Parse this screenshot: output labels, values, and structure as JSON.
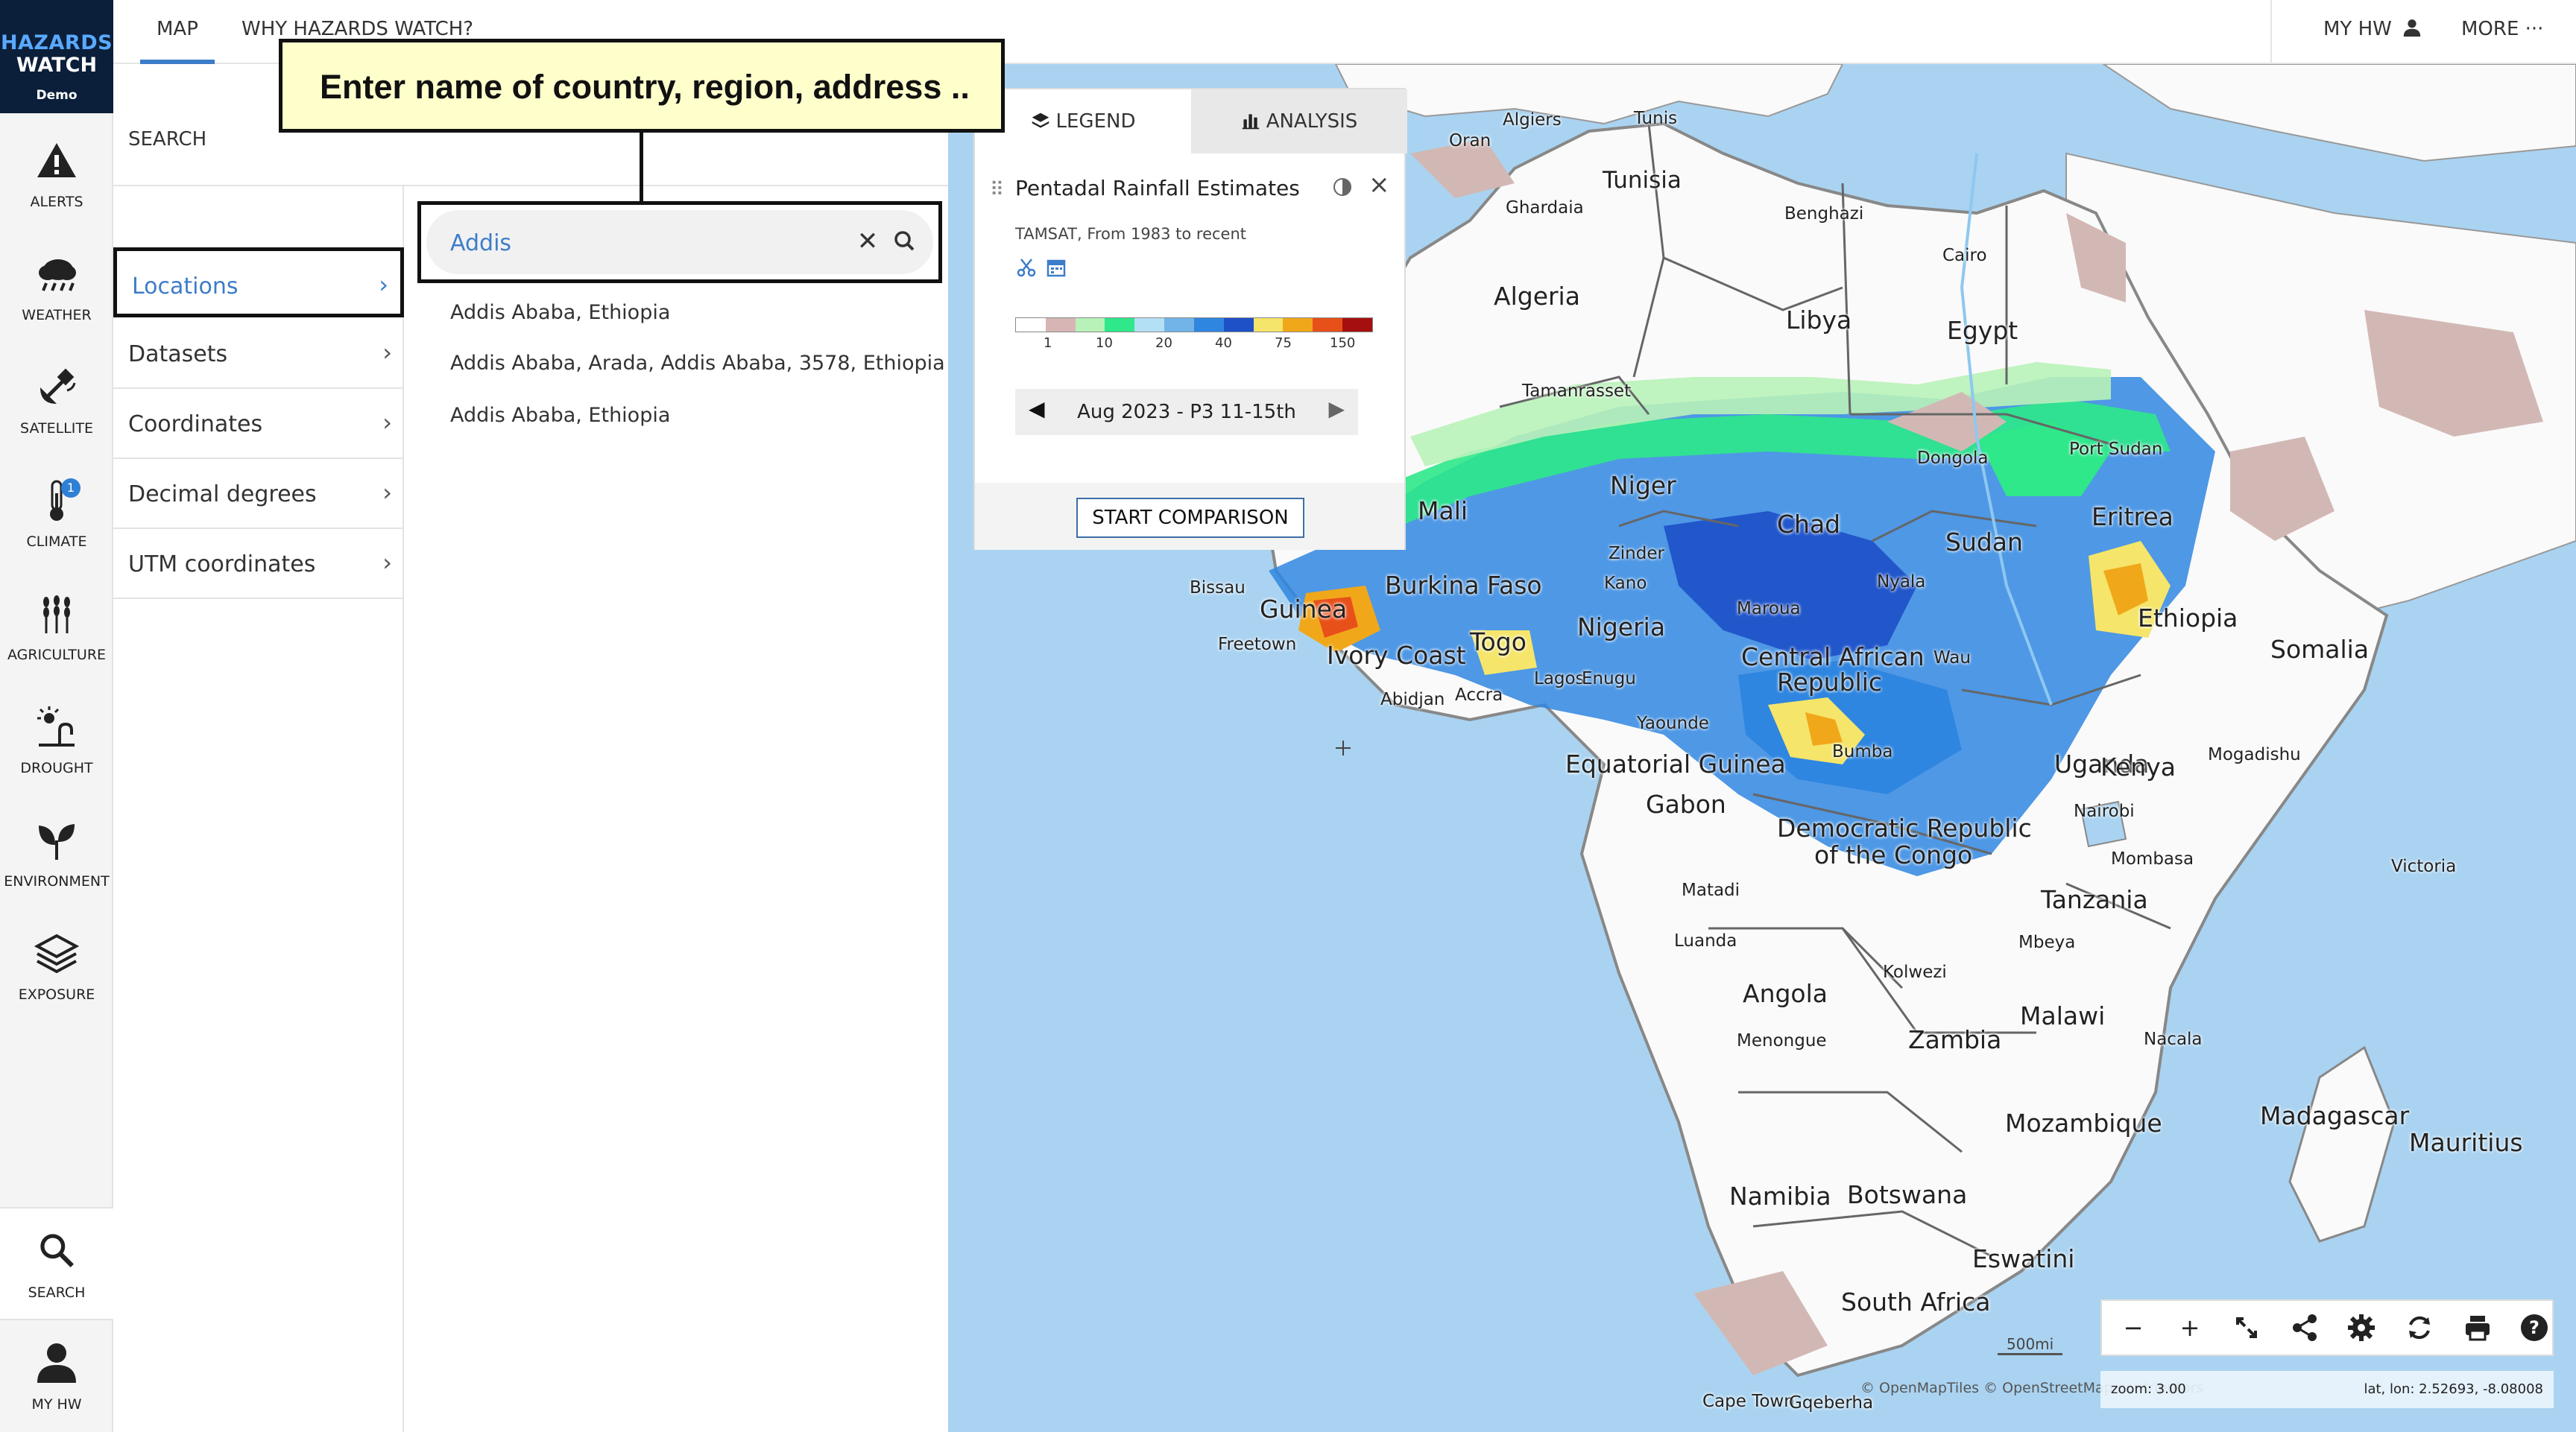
{
  "app": {
    "logo_line1": "HAZARDS",
    "logo_line2": "WATCH",
    "logo_line3": "Demo"
  },
  "topnav": {
    "tabs": [
      {
        "label": "MAP",
        "active": true
      },
      {
        "label": "WHY HAZARDS WATCH?",
        "active": false
      }
    ],
    "my_hw": "MY HW",
    "more": "MORE ···"
  },
  "rail": {
    "items": [
      {
        "label": "ALERTS",
        "icon": "alert-icon"
      },
      {
        "label": "WEATHER",
        "icon": "weather-icon"
      },
      {
        "label": "SATELLITE",
        "icon": "satellite-icon"
      },
      {
        "label": "CLIMATE",
        "icon": "thermometer-icon",
        "badge": "1"
      },
      {
        "label": "AGRICULTURE",
        "icon": "wheat-icon"
      },
      {
        "label": "DROUGHT",
        "icon": "drought-icon"
      },
      {
        "label": "ENVIRONMENT",
        "icon": "leaf-icon"
      },
      {
        "label": "EXPOSURE",
        "icon": "layers-icon"
      }
    ],
    "search_label": "SEARCH",
    "myhw_label": "MY HW"
  },
  "search": {
    "title": "SEARCH",
    "categories": [
      {
        "label": "Locations",
        "active": true
      },
      {
        "label": "Datasets"
      },
      {
        "label": "Coordinates"
      },
      {
        "label": "Decimal degrees"
      },
      {
        "label": "UTM coordinates"
      }
    ],
    "query": "Addis",
    "placeholder": "Enter name of country, region, address ..",
    "results": [
      "Addis Ababa, Ethiopia",
      "Addis Ababa, Arada, Addis Ababa, 3578, Ethiopia",
      "Addis Ababa, Ethiopia"
    ]
  },
  "callout": {
    "text": "Enter name of country, region, address .."
  },
  "legend": {
    "tab_legend": "LEGEND",
    "tab_analysis": "ANALYSIS",
    "layer_title": "Pentadal Rainfall Estimates",
    "layer_subtitle": "TAMSAT, From 1983 to recent",
    "colorbar": [
      "#ffffff",
      "#d7b5b5",
      "#b8f2b8",
      "#2ee88a",
      "#b4e0f5",
      "#72b4e8",
      "#2f86e0",
      "#1e50c8",
      "#f5e56a",
      "#f0a81a",
      "#e8501a",
      "#a50f0f"
    ],
    "colorbar_labels": [
      "1",
      "10",
      "20",
      "40",
      "75",
      "150"
    ],
    "date": "Aug 2023 - P3 11-15th",
    "compare_button": "START COMPARISON"
  },
  "map": {
    "labels": {
      "countries": [
        "Algeria",
        "Libya",
        "Egypt",
        "Tunisia",
        "Mali",
        "Niger",
        "Chad",
        "Sudan",
        "Eritrea",
        "Ethiopia",
        "Somalia",
        "Burkina Faso",
        "Guinea",
        "Ivory Coast",
        "Togo",
        "Nigeria",
        "Central African",
        "Republic",
        "Equatorial Guinea",
        "Gabon",
        "Democratic Republic",
        "of the Congo",
        "Uganda",
        "Kenya",
        "Tanzania",
        "Angola",
        "Zambia",
        "Malawi",
        "Mozambique",
        "Madagascar",
        "Namibia",
        "Botswana",
        "Eswatini",
        "South Africa",
        "Mauritius"
      ],
      "cities": [
        "Algiers",
        "Tunis",
        "Oran",
        "Ghardaia",
        "Benghazi",
        "Cairo",
        "Tamanrasset",
        "Dongola",
        "Port Sudan",
        "Zinder",
        "Kano",
        "Maroua",
        "Nyala",
        "Bissau",
        "Freetown",
        "Abidjan",
        "Accra",
        "Lagos",
        "Enugu",
        "Yaounde",
        "Wau",
        "Bumba",
        "Mogadishu",
        "Nairobi",
        "Mombasa",
        "Victoria",
        "Matadi",
        "Luanda",
        "Mbeya",
        "Kolwezi",
        "Menongue",
        "Nacala",
        "Cape Town",
        "Gqeberha"
      ]
    },
    "scale": "500mi",
    "zoom": "zoom: 3.00",
    "latlon": "lat, lon: 2.52693, -8.08008",
    "attribution": "© OpenMapTiles  © OpenStreetMap contributors"
  }
}
